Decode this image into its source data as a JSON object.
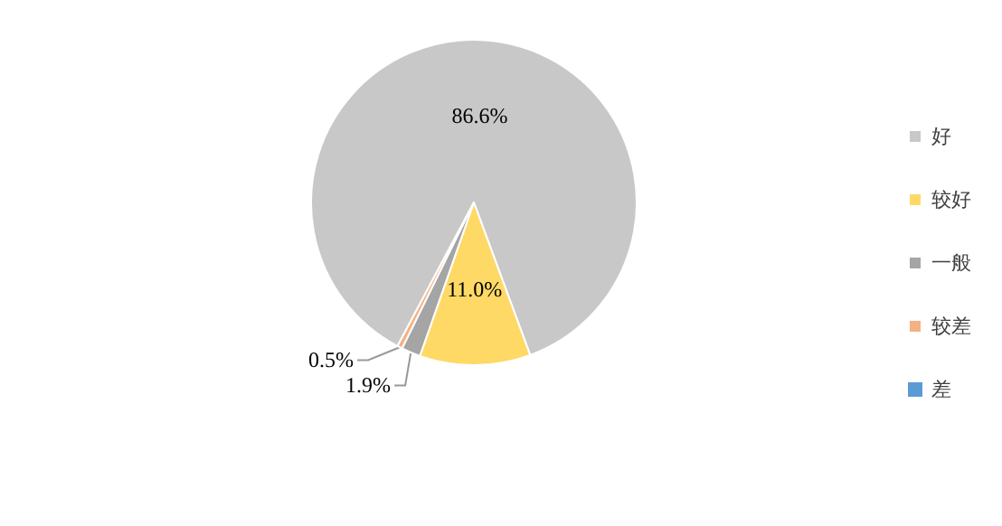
{
  "chart_data": {
    "type": "pie",
    "categories": [
      "好",
      "较好",
      "一般",
      "较差",
      "差"
    ],
    "values": [
      86.6,
      11.0,
      1.9,
      0.5,
      0
    ],
    "colors": [
      "#c8c8c8",
      "#ffd966",
      "#a5a5a5",
      "#f4b183",
      "#5b9bd5"
    ],
    "value_labels": [
      "86.6%",
      "11.0%",
      "1.9%",
      "0.5%",
      null
    ],
    "legend": "right"
  }
}
